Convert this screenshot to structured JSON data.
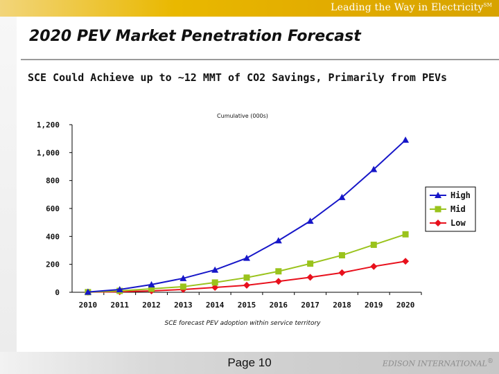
{
  "header": {
    "tagline": "Leading the Way in Electricity",
    "tagline_mark": "SM"
  },
  "slide": {
    "title": "2020 PEV Market Penetration Forecast",
    "subtitle": "SCE Could Achieve up to ~12 MMT of CO2 Savings, Primarily from PEVs"
  },
  "chart_data": {
    "type": "line",
    "title": "Cumulative (000s)",
    "caption": "SCE forecast PEV adoption within service territory",
    "categories": [
      "2010",
      "2011",
      "2012",
      "2013",
      "2014",
      "2015",
      "2016",
      "2017",
      "2018",
      "2019",
      "2020"
    ],
    "y_ticks": [
      "0",
      "200",
      "400",
      "600",
      "800",
      "1,000",
      "1,200"
    ],
    "ylim": [
      0,
      1200
    ],
    "legend_position": "right",
    "series": [
      {
        "name": "High",
        "color": "#1616c8",
        "marker": "triangle",
        "values": [
          2,
          20,
          55,
          100,
          160,
          245,
          370,
          510,
          680,
          880,
          1090
        ]
      },
      {
        "name": "Mid",
        "color": "#9ac31c",
        "marker": "square",
        "values": [
          1,
          10,
          25,
          40,
          70,
          105,
          150,
          205,
          265,
          340,
          415
        ]
      },
      {
        "name": "Low",
        "color": "#e8101c",
        "marker": "diamond",
        "values": [
          1,
          4,
          10,
          20,
          35,
          50,
          78,
          107,
          140,
          185,
          222
        ]
      }
    ]
  },
  "footer": {
    "page": "Page 10",
    "brand": "EDISON INTERNATIONAL",
    "brand_mark": "®"
  }
}
